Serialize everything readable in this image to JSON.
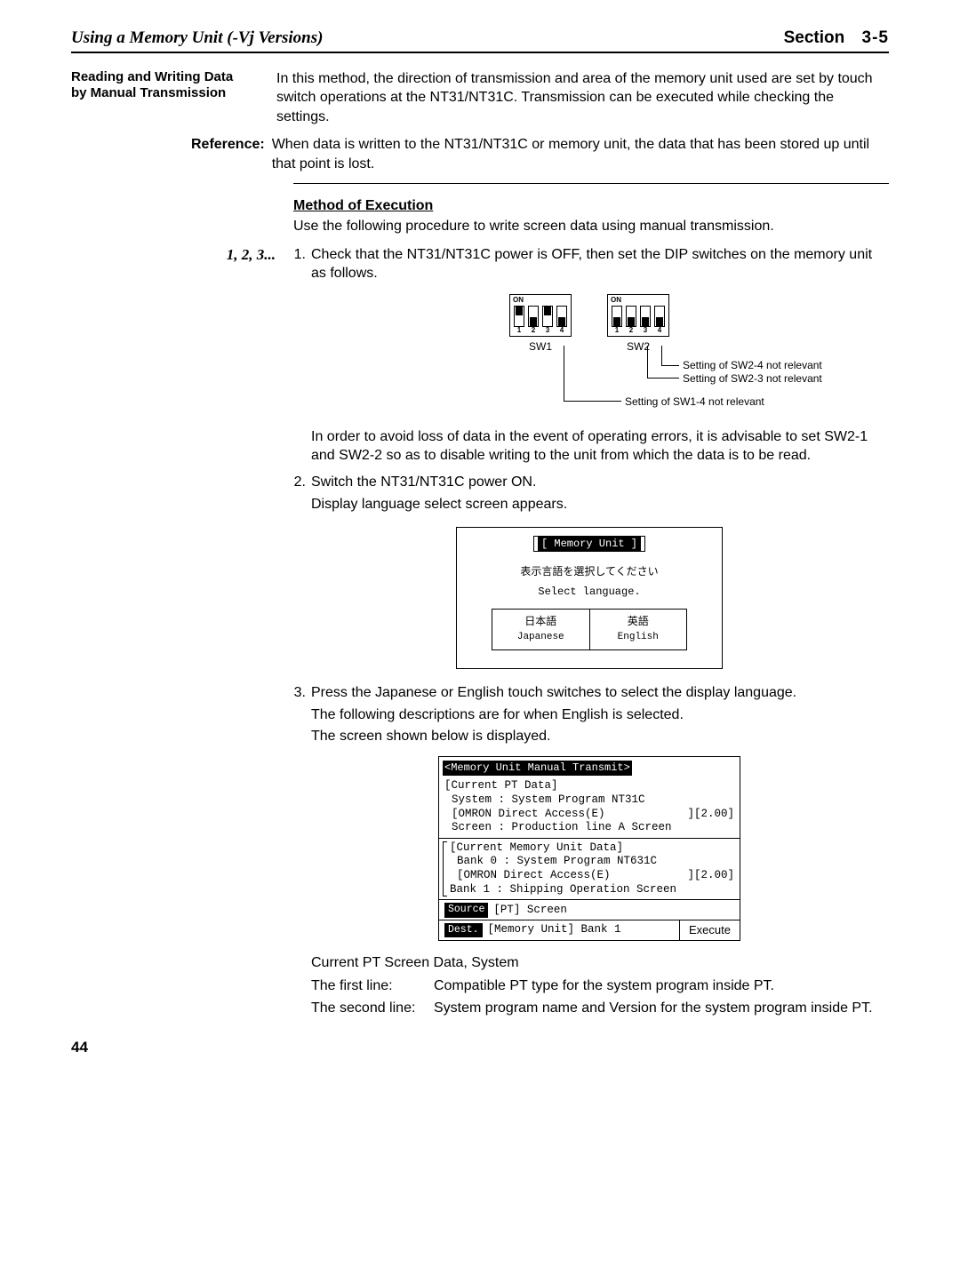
{
  "header": {
    "left": "Using a Memory Unit (-Vj Versions)",
    "right_label": "Section",
    "right_num": "3-5"
  },
  "sidehead": {
    "line1": "Reading and Writing Data",
    "line2": "by Manual Transmission"
  },
  "intro_para": "In this method, the direction of transmission and area of the memory unit used are set by touch switch operations at the NT31/NT31C. Transmission can be executed while checking the settings.",
  "reference": {
    "label": "Reference:",
    "text": "When data is written to the NT31/NT31C or memory unit, the data that has been stored up until that point is lost."
  },
  "method_head": "Method of Execution",
  "method_intro": "Use the following procedure to write screen data using manual transmission.",
  "steps_prefix": "1, 2, 3...",
  "step1_num": "1.",
  "step1_txt": "Check that the NT31/NT31C power is OFF, then set the DIP switches on the memory unit as follows.",
  "dip": {
    "on": "ON",
    "nums": [
      "1",
      "2",
      "3",
      "4"
    ],
    "sw1_label": "SW1",
    "sw2_label": "SW2",
    "sw1_positions": [
      "up",
      "down",
      "up",
      "down"
    ],
    "sw2_positions": [
      "down",
      "down",
      "down",
      "down"
    ],
    "call_sw24": "Setting of SW2-4 not relevant",
    "call_sw23": "Setting of SW2-3 not relevant",
    "call_sw14": "Setting of SW1-4 not relevant"
  },
  "after_dip": "In order to avoid loss of data in the event of operating errors, it is advisable to set SW2-1 and SW2-2 so as to disable writing to the unit from which the data is to be read.",
  "step2_num": "2.",
  "step2_txt": "Switch the NT31/NT31C power ON.",
  "step2_sub": "Display language select screen appears.",
  "screen1": {
    "title": "[ Memory Unit ]",
    "jp_line": "表示言語を選択してください",
    "en_line": "Select language.",
    "btn1_top": "日本語",
    "btn1_bot": "Japanese",
    "btn2_top": "英語",
    "btn2_bot": "English"
  },
  "step3_num": "3.",
  "step3_txt": "Press the Japanese or English touch switches to select the display language.",
  "step3_sub1": "The following descriptions are for when English is selected.",
  "step3_sub2": "The screen shown below is displayed.",
  "screen2": {
    "title": "<Memory Unit Manual Transmit>",
    "cpt_head": "[Current PT Data]",
    "cpt_l1": "System : System Program NT31C",
    "cpt_l2a": "[OMRON Direct Access(E)",
    "cpt_l2b": "][2.00]",
    "cpt_l3": "Screen : Production line A Screen",
    "cmu_head": "[Current Memory Unit Data]",
    "cmu_l1": "Bank 0 : System Program NT631C",
    "cmu_l2a": "[OMRON Direct Access(E)",
    "cmu_l2b": "][2.00]",
    "cmu_l3": "Bank 1 : Shipping Operation Screen",
    "src_label": "Source",
    "src_txt": "[PT] Screen",
    "dest_label": "Dest.",
    "dest_txt": "[Memory Unit] Bank 1",
    "exec": "Execute"
  },
  "bottom": {
    "heading": "Current PT Screen Data, System",
    "row1_k": "The first line:",
    "row1_v": "Compatible PT type for the system program inside PT.",
    "row2_k": "The second line:",
    "row2_v": "System program name and Version for the system program inside PT."
  },
  "pagenum": "44"
}
